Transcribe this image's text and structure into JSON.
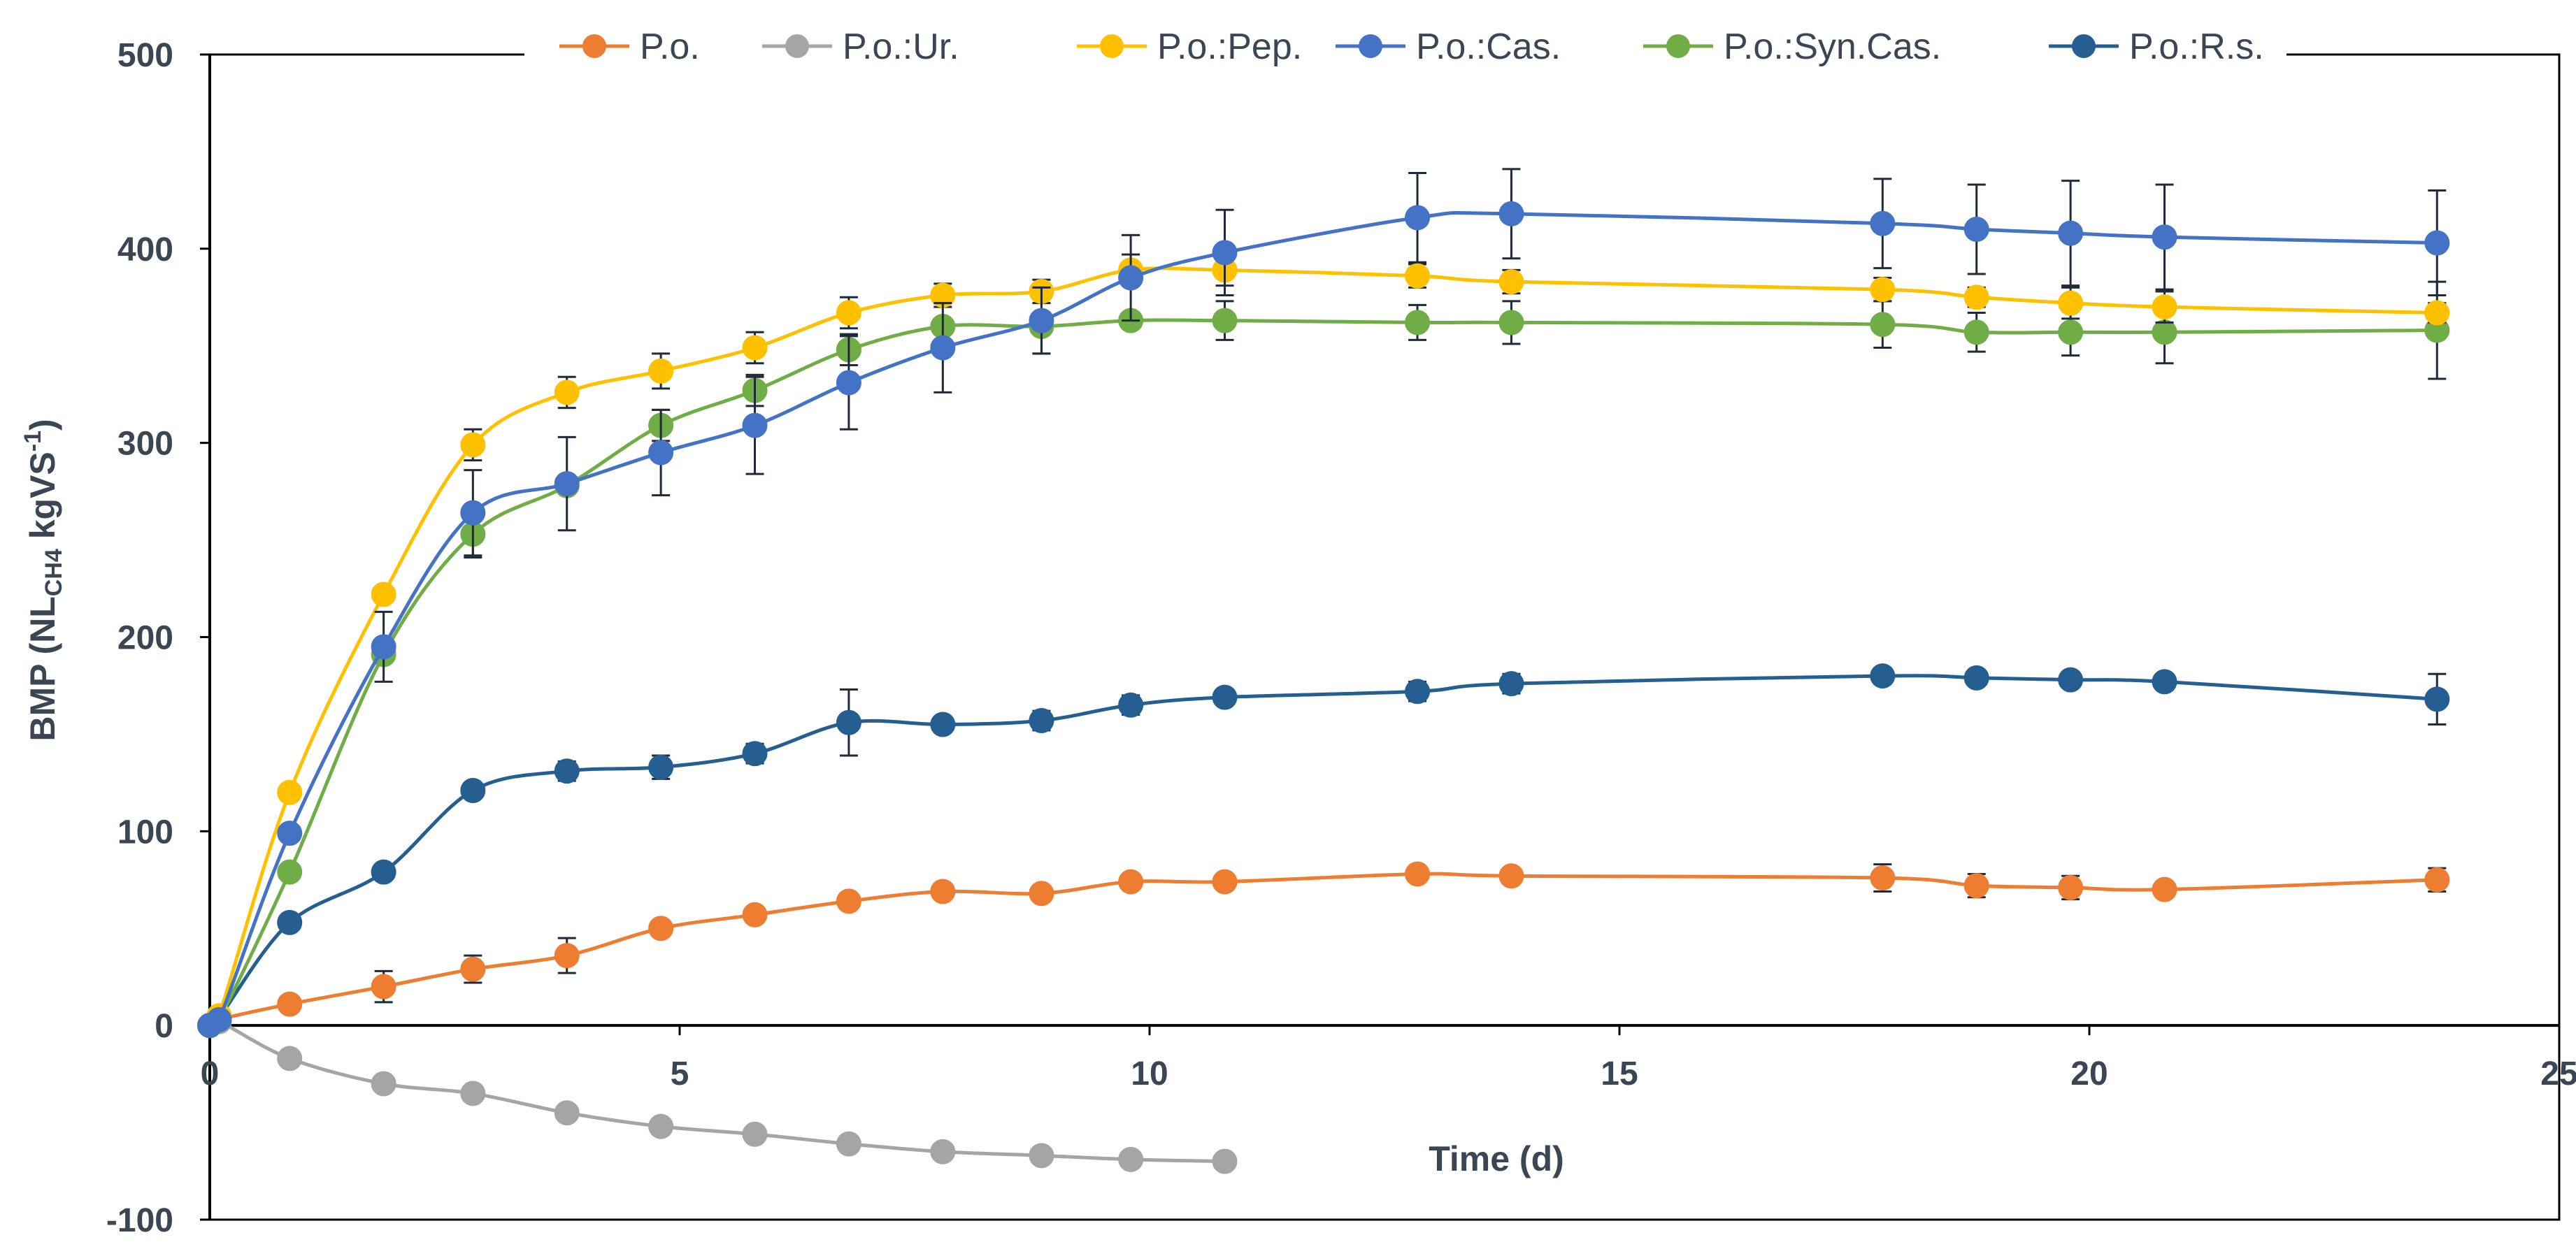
{
  "chart_data": {
    "type": "line",
    "title": "",
    "xlabel": "Time (d)",
    "ylabel_main": "BMP (NL",
    "ylabel_sub": "CH4",
    "ylabel_mid": " kgVS",
    "ylabel_sup": "-1",
    "ylabel_end": ")",
    "xlim": [
      0,
      25
    ],
    "ylim": [
      -100,
      500
    ],
    "xticks": [
      0,
      5,
      10,
      15,
      20,
      25
    ],
    "yticks": [
      -100,
      0,
      100,
      200,
      300,
      400,
      500
    ],
    "legend_position": "top",
    "grid": false,
    "series": [
      {
        "name": "P.o.",
        "color": "#ED7D31",
        "x": [
          0,
          0.1,
          0.85,
          1.85,
          2.8,
          3.8,
          4.8,
          5.8,
          6.8,
          7.8,
          8.85,
          9.8,
          10.8,
          12.85,
          13.85,
          17.8,
          18.8,
          19.8,
          20.8,
          23.7
        ],
        "y": [
          0,
          3,
          11,
          20,
          29,
          36,
          50,
          57,
          64,
          69,
          68,
          74,
          74,
          78,
          77,
          76,
          72,
          71,
          70,
          75
        ],
        "err": [
          0,
          0,
          0,
          8,
          7,
          9,
          4,
          4,
          4,
          3,
          3,
          3,
          3,
          3,
          3,
          7,
          6,
          6,
          4,
          6
        ]
      },
      {
        "name": "P.o.:Ur.",
        "color": "#A5A5A5",
        "x": [
          0,
          0.1,
          0.85,
          1.85,
          2.8,
          3.8,
          4.8,
          5.8,
          6.8,
          7.8,
          8.85,
          9.8,
          10.8
        ],
        "y": [
          0,
          2,
          -17,
          -30,
          -35,
          -45,
          -52,
          -56,
          -61,
          -65,
          -67,
          -69,
          -70
        ],
        "err": []
      },
      {
        "name": "P.o.:Pep.",
        "color": "#FFC000",
        "x": [
          0,
          0.1,
          0.85,
          1.85,
          2.8,
          3.8,
          4.8,
          5.8,
          6.8,
          7.8,
          8.85,
          9.8,
          10.8,
          12.85,
          13.85,
          17.8,
          18.8,
          19.8,
          20.8,
          23.7
        ],
        "y": [
          0,
          5,
          120,
          222,
          299,
          326,
          337,
          349,
          367,
          376,
          378,
          389,
          389,
          386,
          383,
          379,
          375,
          372,
          370,
          367
        ],
        "err": [
          0,
          0,
          0,
          0,
          8,
          8,
          9,
          8,
          8,
          6,
          6,
          8,
          8,
          6,
          6,
          6,
          5,
          8,
          8,
          5
        ]
      },
      {
        "name": "P.o.:Cas.",
        "color": "#4472C4",
        "x": [
          0,
          0.1,
          0.85,
          1.85,
          2.8,
          3.8,
          4.8,
          5.8,
          6.8,
          7.8,
          8.85,
          9.8,
          10.8,
          12.85,
          13.85,
          17.8,
          18.8,
          19.8,
          20.8,
          23.7
        ],
        "y": [
          0,
          3,
          99,
          195,
          264,
          279,
          295,
          309,
          331,
          349,
          363,
          385,
          398,
          416,
          418,
          413,
          410,
          408,
          406,
          403
        ],
        "err": [
          0,
          0,
          0,
          18,
          22,
          24,
          22,
          25,
          24,
          23,
          17,
          22,
          22,
          23,
          23,
          23,
          23,
          27,
          27,
          27
        ]
      },
      {
        "name": "P.o.:Syn.Cas.",
        "color": "#70AD47",
        "x": [
          0,
          0.1,
          0.85,
          1.85,
          2.8,
          3.8,
          4.8,
          5.8,
          6.8,
          7.8,
          8.85,
          9.8,
          10.8,
          12.85,
          13.85,
          17.8,
          18.8,
          19.8,
          20.8,
          23.7
        ],
        "y": [
          0,
          3,
          79,
          191,
          253,
          278,
          309,
          327,
          348,
          360,
          360,
          363,
          363,
          362,
          362,
          361,
          357,
          357,
          357,
          358
        ],
        "err": [
          0,
          0,
          0,
          0,
          12,
          0,
          8,
          8,
          8,
          0,
          14,
          0,
          10,
          9,
          11,
          12,
          10,
          12,
          16,
          25
        ]
      },
      {
        "name": "P.o.:R.s.",
        "color": "#255E91",
        "x": [
          0,
          0.1,
          0.85,
          1.85,
          2.8,
          3.8,
          4.8,
          5.8,
          6.8,
          7.8,
          8.85,
          9.8,
          10.8,
          12.85,
          13.85,
          17.8,
          18.8,
          19.8,
          20.8,
          23.7
        ],
        "y": [
          0,
          4,
          53,
          79,
          121,
          131,
          133,
          140,
          156,
          155,
          157,
          165,
          169,
          172,
          176,
          180,
          179,
          178,
          177,
          168
        ],
        "err": [
          0,
          0,
          0,
          0,
          0,
          5,
          6,
          5,
          17,
          4,
          5,
          5,
          4,
          5,
          5,
          4,
          3,
          3,
          4,
          13
        ]
      }
    ]
  }
}
